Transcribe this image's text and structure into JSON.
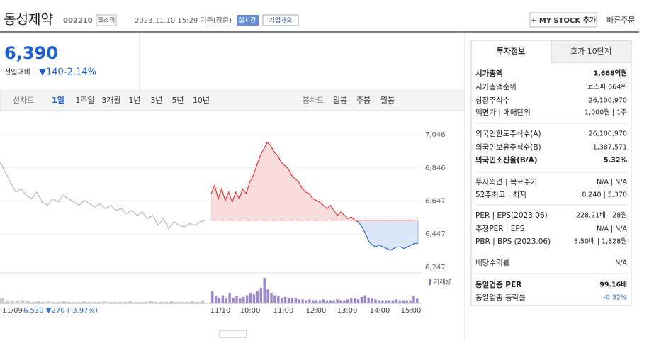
{
  "header": {
    "name": "동성제약",
    "code": "002210",
    "market": "코스피",
    "time": "2023.11.10 15:29 기준(장중)",
    "realtime": "실시간",
    "overview": "기업개요",
    "mystock": "+ MY STOCK 추가",
    "quick_order": "빠른주문"
  },
  "quote": {
    "price": "6,390",
    "change_label": "전일대비",
    "change": "▼140",
    "rate": "-2.14%"
  },
  "chart_tabs": {
    "line": [
      "선차트",
      "1일",
      "1주일",
      "3개월",
      "1년",
      "3년",
      "5년",
      "10년"
    ],
    "candle": [
      "봉차트",
      "일봉",
      "주봉",
      "월봉"
    ]
  },
  "chart": {
    "ylim": [
      6247,
      7046
    ],
    "yticks": [
      {
        "value": 6247,
        "label": "6,247"
      },
      {
        "value": 6447,
        "label": "6,447"
      },
      {
        "value": 6647,
        "label": "6,647"
      },
      {
        "value": 6846,
        "label": "6,846"
      },
      {
        "value": 7046,
        "label": "7,046"
      }
    ],
    "reference_line": 6530,
    "previous_values": [
      6880,
      6820,
      6760,
      6700,
      6720,
      6680,
      6660,
      6700,
      6640,
      6620,
      6660,
      6640,
      6680,
      6660,
      6640,
      6620,
      6650,
      6630,
      6610,
      6630,
      6600,
      6620,
      6590,
      6600,
      6570,
      6590,
      6560,
      6580,
      6540,
      6560,
      6500,
      6540,
      6480,
      6520,
      6500,
      6490,
      6510,
      6500,
      6520,
      6530
    ],
    "today_values": [
      6690,
      6740,
      6660,
      6720,
      6650,
      6700,
      6640,
      6700,
      6660,
      6720,
      6690,
      6760,
      6800,
      6860,
      6920,
      6960,
      7000,
      6980,
      6940,
      6920,
      6880,
      6860,
      6840,
      6800,
      6780,
      6760,
      6720,
      6700,
      6690,
      6660,
      6650,
      6640,
      6620,
      6600,
      6620,
      6590,
      6560,
      6580,
      6560,
      6540,
      6550,
      6530,
      6520,
      6490,
      6450,
      6400,
      6380,
      6370,
      6380,
      6370,
      6360,
      6350,
      6360,
      6370,
      6370,
      6360,
      6370,
      6380,
      6390,
      6390
    ],
    "volume_label": "거래량",
    "volume_prev": [
      6,
      3,
      2,
      2,
      3,
      2,
      1,
      2,
      1,
      2,
      1,
      1,
      2,
      1,
      1,
      1,
      2,
      1,
      1,
      1,
      2,
      1,
      1,
      1,
      1,
      2,
      1,
      1,
      1,
      2,
      1,
      1,
      1,
      2,
      1,
      1,
      1,
      2,
      1,
      3
    ],
    "volume_today": [
      14,
      8,
      6,
      9,
      5,
      12,
      6,
      8,
      5,
      7,
      9,
      12,
      10,
      14,
      18,
      30,
      16,
      12,
      9,
      8,
      6,
      7,
      5,
      6,
      5,
      4,
      4,
      3,
      4,
      3,
      3,
      3,
      4,
      3,
      3,
      3,
      4,
      3,
      3,
      4,
      5,
      6,
      4,
      7,
      9,
      6,
      5,
      4,
      3,
      3,
      3,
      3,
      3,
      4,
      3,
      3,
      3,
      3,
      8,
      5
    ],
    "volume_max": 30,
    "prev_caption": "11/09",
    "prev_info": "6,530 ▼270 (-3.97%)",
    "time_labels": [
      "11/10",
      "10:00",
      "11:00",
      "12:00",
      "13:00",
      "14:00",
      "15:00"
    ]
  },
  "panel": {
    "tabs": [
      "투자정보",
      "호가 10단계"
    ],
    "sections": [
      [
        {
          "label": "시가총액",
          "value": "1,668억원"
        },
        {
          "label": "시가총액순위",
          "value": "코스피 664위"
        },
        {
          "label": "상장주식수",
          "value": "26,100,970"
        },
        {
          "label": "액면가 | 매매단위",
          "value": "1,000원 | 1주"
        }
      ],
      [
        {
          "label": "외국인한도주식수(A)",
          "value": "26,100,970"
        },
        {
          "label": "외국인보유주식수(B)",
          "value": "1,387,571"
        },
        {
          "label": "외국인소진율(B/A)",
          "value": "5.32%"
        }
      ],
      [
        {
          "label": "투자의견 | 목표주가",
          "value": "N/A | N/A"
        },
        {
          "label": "52주최고 | 최저",
          "value": "8,240 | 5,370"
        }
      ],
      [
        {
          "label": "PER | EPS(2023.06)",
          "value": "228.21배 | 28원"
        },
        {
          "label": "추정PER | EPS",
          "value": "N/A | N/A"
        },
        {
          "label": "PBR | BPS (2023.06)",
          "value": "3.50배 | 1,828원"
        },
        {
          "label": "배당수익률",
          "value": "N/A"
        }
      ],
      [
        {
          "label": "동일업종 PER",
          "value": "99.16배"
        },
        {
          "label": "동일업종 등락률",
          "value": "-0.32%"
        }
      ]
    ]
  }
}
